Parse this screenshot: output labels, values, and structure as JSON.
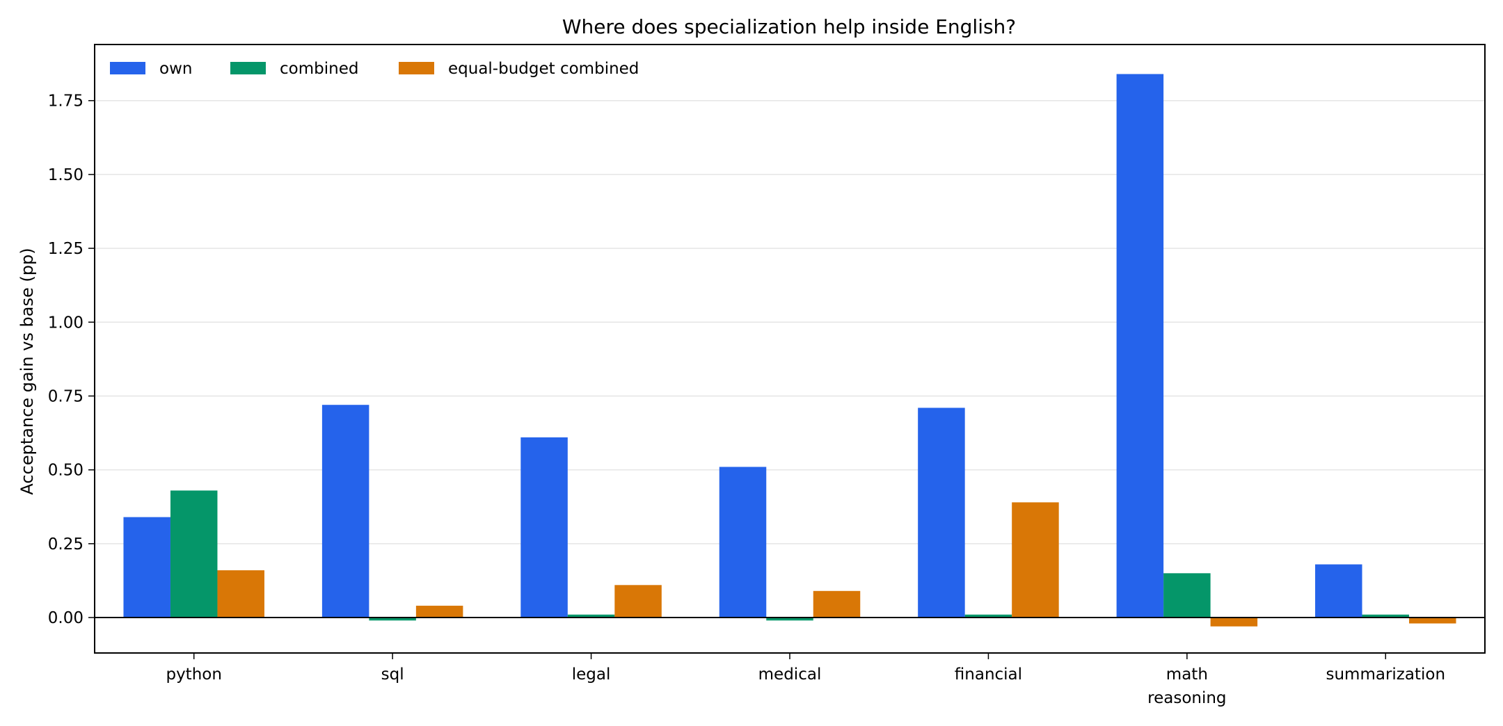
{
  "chart_data": {
    "type": "bar",
    "title": "Where does specialization help inside English?",
    "xlabel": "",
    "ylabel": "Acceptance gain vs base (pp)",
    "categories": [
      "python",
      "sql",
      "legal",
      "medical",
      "financial",
      "math\nreasoning",
      "summarization"
    ],
    "series": [
      {
        "name": "own",
        "color": "#2563eb",
        "values": [
          0.34,
          0.72,
          0.61,
          0.51,
          0.71,
          1.84,
          0.18
        ]
      },
      {
        "name": "combined",
        "color": "#059669",
        "values": [
          0.43,
          -0.01,
          0.01,
          -0.01,
          0.01,
          0.15,
          0.01
        ]
      },
      {
        "name": "equal-budget combined",
        "color": "#d97706",
        "values": [
          0.16,
          0.04,
          0.11,
          0.09,
          0.39,
          -0.03,
          -0.02
        ]
      }
    ],
    "yticks": [
      "0.00",
      "0.25",
      "0.50",
      "0.75",
      "1.00",
      "1.25",
      "1.50",
      "1.75"
    ],
    "ylim": [
      -0.12,
      1.94
    ],
    "grid": "horizontal",
    "legend_position": "top-left",
    "zero_line": true
  }
}
